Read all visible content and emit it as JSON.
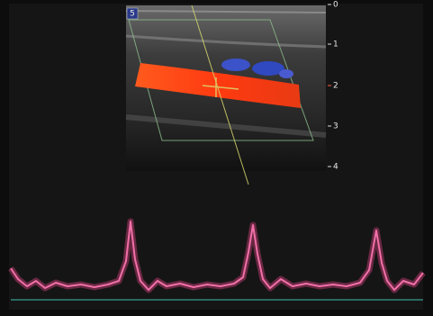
{
  "header": {
    "label": "5"
  },
  "depth_scale": {
    "labels": [
      "0",
      "1",
      "2",
      "3",
      "4"
    ]
  }
}
